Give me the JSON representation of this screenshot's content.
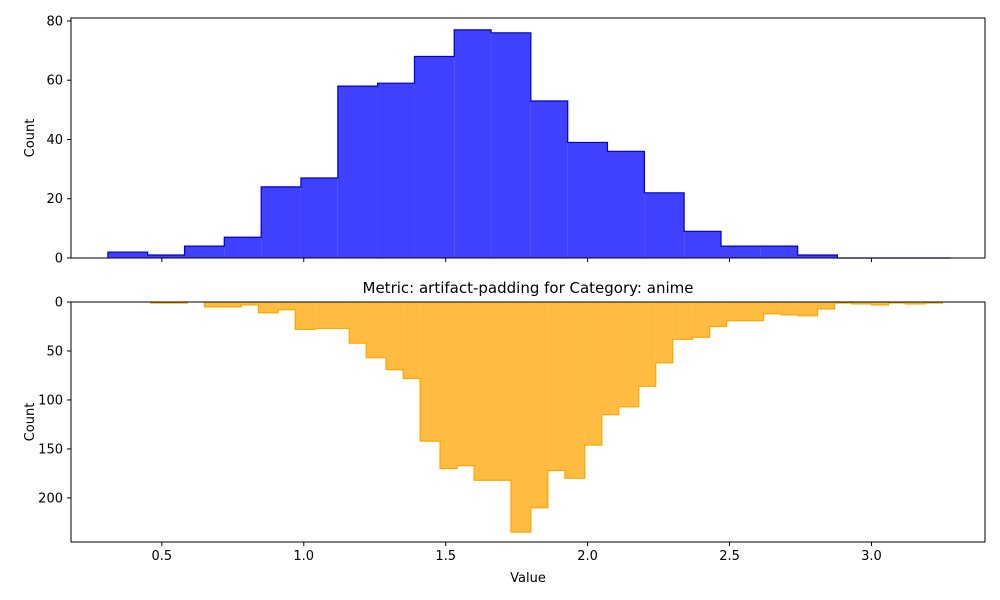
{
  "chart_data": [
    {
      "type": "histogram",
      "title": "",
      "xlabel": "",
      "ylabel": "Count",
      "xlim": [
        0.18,
        3.4
      ],
      "ylim": [
        0,
        81
      ],
      "y_inverted": false,
      "color": "#0000ff",
      "fill_alpha": 0.75,
      "edge_color": "#0000cc",
      "bins": [
        {
          "x0": 0.31,
          "x1": 0.45,
          "count": 2
        },
        {
          "x0": 0.45,
          "x1": 0.58,
          "count": 1
        },
        {
          "x0": 0.58,
          "x1": 0.72,
          "count": 4
        },
        {
          "x0": 0.72,
          "x1": 0.85,
          "count": 7
        },
        {
          "x0": 0.85,
          "x1": 0.99,
          "count": 24
        },
        {
          "x0": 0.99,
          "x1": 1.12,
          "count": 27
        },
        {
          "x0": 1.12,
          "x1": 1.26,
          "count": 58
        },
        {
          "x0": 1.26,
          "x1": 1.39,
          "count": 59
        },
        {
          "x0": 1.39,
          "x1": 1.53,
          "count": 68
        },
        {
          "x0": 1.53,
          "x1": 1.66,
          "count": 77
        },
        {
          "x0": 1.66,
          "x1": 1.8,
          "count": 76
        },
        {
          "x0": 1.8,
          "x1": 1.93,
          "count": 53
        },
        {
          "x0": 1.93,
          "x1": 2.07,
          "count": 39
        },
        {
          "x0": 2.07,
          "x1": 2.2,
          "count": 36
        },
        {
          "x0": 2.2,
          "x1": 2.34,
          "count": 22
        },
        {
          "x0": 2.34,
          "x1": 2.47,
          "count": 9
        },
        {
          "x0": 2.47,
          "x1": 2.61,
          "count": 4
        },
        {
          "x0": 2.61,
          "x1": 2.74,
          "count": 4
        },
        {
          "x0": 2.74,
          "x1": 2.88,
          "count": 1
        },
        {
          "x0": 2.88,
          "x1": 3.01,
          "count": 0
        },
        {
          "x0": 3.01,
          "x1": 3.15,
          "count": 0
        },
        {
          "x0": 3.15,
          "x1": 3.28,
          "count": 0
        }
      ],
      "x_ticks": [
        0.5,
        1.0,
        1.5,
        2.0,
        2.5,
        3.0
      ],
      "x_tick_labels": [],
      "y_ticks": [
        0,
        20,
        40,
        60,
        80
      ],
      "y_tick_labels": [
        "0",
        "20",
        "40",
        "60",
        "80"
      ]
    },
    {
      "type": "histogram",
      "title": "Metric: artifact-padding for Category: anime",
      "xlabel": "Value",
      "ylabel": "Count",
      "xlim": [
        0.18,
        3.4
      ],
      "ylim": [
        0,
        245
      ],
      "y_inverted": true,
      "color": "#ffa500",
      "fill_alpha": 0.75,
      "edge_color": "#ffa500",
      "bins": [
        {
          "x0": 0.46,
          "x1": 0.59,
          "count": 1
        },
        {
          "x0": 0.65,
          "x1": 0.78,
          "count": 5
        },
        {
          "x0": 0.78,
          "x1": 0.84,
          "count": 3
        },
        {
          "x0": 0.84,
          "x1": 0.91,
          "count": 11
        },
        {
          "x0": 0.91,
          "x1": 0.97,
          "count": 8
        },
        {
          "x0": 0.97,
          "x1": 1.04,
          "count": 28
        },
        {
          "x0": 1.04,
          "x1": 1.16,
          "count": 27
        },
        {
          "x0": 1.16,
          "x1": 1.22,
          "count": 42
        },
        {
          "x0": 1.22,
          "x1": 1.29,
          "count": 57
        },
        {
          "x0": 1.29,
          "x1": 1.35,
          "count": 69
        },
        {
          "x0": 1.35,
          "x1": 1.41,
          "count": 78
        },
        {
          "x0": 1.41,
          "x1": 1.48,
          "count": 142
        },
        {
          "x0": 1.48,
          "x1": 1.54,
          "count": 170
        },
        {
          "x0": 1.54,
          "x1": 1.6,
          "count": 167
        },
        {
          "x0": 1.6,
          "x1": 1.73,
          "count": 182
        },
        {
          "x0": 1.73,
          "x1": 1.8,
          "count": 235
        },
        {
          "x0": 1.8,
          "x1": 1.86,
          "count": 210
        },
        {
          "x0": 1.86,
          "x1": 1.92,
          "count": 172
        },
        {
          "x0": 1.92,
          "x1": 1.99,
          "count": 180
        },
        {
          "x0": 1.99,
          "x1": 2.05,
          "count": 146
        },
        {
          "x0": 2.05,
          "x1": 2.11,
          "count": 115
        },
        {
          "x0": 2.11,
          "x1": 2.18,
          "count": 107
        },
        {
          "x0": 2.18,
          "x1": 2.24,
          "count": 86
        },
        {
          "x0": 2.24,
          "x1": 2.3,
          "count": 62
        },
        {
          "x0": 2.3,
          "x1": 2.37,
          "count": 38
        },
        {
          "x0": 2.37,
          "x1": 2.43,
          "count": 36
        },
        {
          "x0": 2.43,
          "x1": 2.49,
          "count": 25
        },
        {
          "x0": 2.49,
          "x1": 2.62,
          "count": 19
        },
        {
          "x0": 2.62,
          "x1": 2.68,
          "count": 12
        },
        {
          "x0": 2.68,
          "x1": 2.74,
          "count": 13
        },
        {
          "x0": 2.74,
          "x1": 2.81,
          "count": 14
        },
        {
          "x0": 2.81,
          "x1": 2.87,
          "count": 7
        },
        {
          "x0": 2.87,
          "x1": 2.93,
          "count": 1
        },
        {
          "x0": 2.93,
          "x1": 3.0,
          "count": 2
        },
        {
          "x0": 3.0,
          "x1": 3.06,
          "count": 3
        },
        {
          "x0": 3.06,
          "x1": 3.12,
          "count": 1
        },
        {
          "x0": 3.12,
          "x1": 3.19,
          "count": 2
        },
        {
          "x0": 3.19,
          "x1": 3.25,
          "count": 1
        }
      ],
      "x_ticks": [
        0.5,
        1.0,
        1.5,
        2.0,
        2.5,
        3.0
      ],
      "x_tick_labels": [
        "0.5",
        "1.0",
        "1.5",
        "2.0",
        "2.5",
        "3.0"
      ],
      "y_ticks": [
        0,
        50,
        100,
        150,
        200
      ],
      "y_tick_labels": [
        "0",
        "50",
        "100",
        "150",
        "200"
      ]
    }
  ]
}
